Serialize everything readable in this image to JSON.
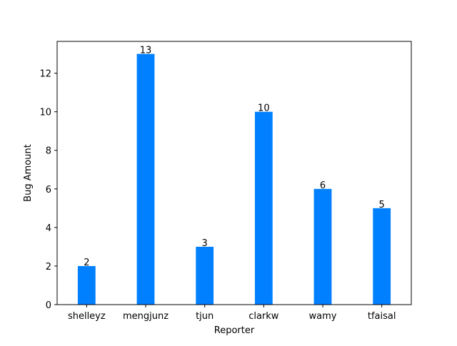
{
  "chart_data": {
    "type": "bar",
    "title": "",
    "xlabel": "Reporter",
    "ylabel": "Bug Amount",
    "categories": [
      "shelleyz",
      "mengjunz",
      "tjun",
      "clarkw",
      "wamy",
      "tfaisal"
    ],
    "values": [
      2,
      13,
      3,
      10,
      6,
      5
    ],
    "ylim": [
      0,
      13.65
    ],
    "yticks": [
      0,
      2,
      4,
      6,
      8,
      10,
      12
    ],
    "grid": false,
    "bar_color": "#0080ff",
    "show_value_labels": true
  }
}
